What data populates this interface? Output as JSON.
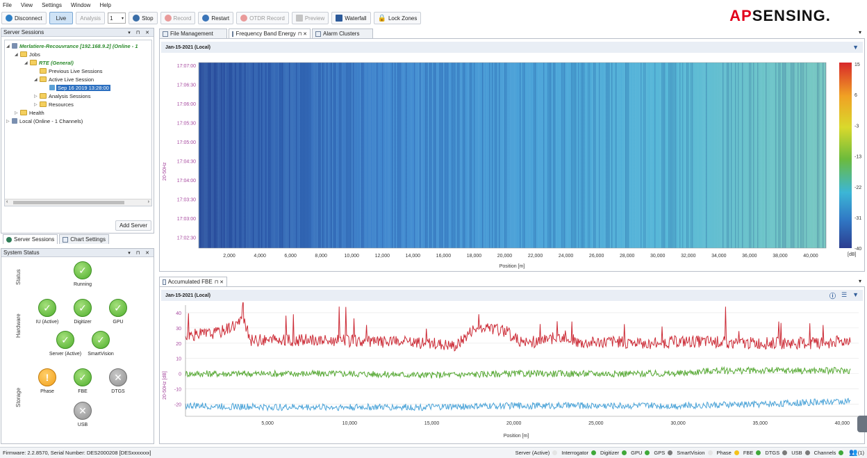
{
  "menu": [
    "File",
    "View",
    "Settings",
    "Window",
    "Help"
  ],
  "toolbar": {
    "disconnect": "Disconnect",
    "live": "Live",
    "analysis": "Analysis",
    "spin_value": "1",
    "stop": "Stop",
    "record": "Record",
    "restart": "Restart",
    "otdr_record": "OTDR Record",
    "preview": "Preview",
    "waterfall": "Waterfall",
    "lock_zones": "Lock Zones"
  },
  "logo": {
    "prefix": "AP",
    "suffix": "SENSING."
  },
  "server_sessions": {
    "title": "Server Sessions",
    "tree": {
      "server": "Merlatiere-Recouvrance [192.168.9.2] (Online - 1",
      "jobs": "Jobs",
      "rte": "RTE (General)",
      "previous": "Previous Live Sessions",
      "active": "Active Live Session",
      "session": "Sep 16 2019 13:28:00",
      "analysis": "Analysis Sessions",
      "resources": "Resources",
      "health": "Health",
      "local": "Local (Online - 1 Channels)"
    },
    "add_server": "Add Server",
    "tab_server_sessions": "Server Sessions",
    "tab_chart_settings": "Chart Settings"
  },
  "system_status": {
    "title": "System Status",
    "group_status": "Status",
    "group_hardware": "Hardware",
    "group_storage": "Storage",
    "running": "Running",
    "iu": "IU (Active)",
    "digitizer": "Digitizer",
    "gpu": "GPU",
    "server": "Server (Active)",
    "smartvision": "SmartVision",
    "phase": "Phase",
    "fbe": "FBE",
    "dtgs": "DTGS",
    "usb": "USB"
  },
  "tabs": {
    "file_management": "File Management",
    "frequency_band_energy": "Frequency Band Energy",
    "alarm_clusters": "Alarm Clusters",
    "accumulated_fbe": "Accumulated FBE"
  },
  "waterfall": {
    "date": "Jan-15-2021 (Local)",
    "ylabel": "20-50Hz",
    "xlabel": "Position [m]",
    "y_ticks": [
      "17:07:00",
      "17:06:30",
      "17:06:00",
      "17:05:30",
      "17:05:00",
      "17:04:30",
      "17:04:00",
      "17:03:30",
      "17:03:00",
      "17:02:30"
    ],
    "x_ticks": [
      "2,000",
      "4,000",
      "6,000",
      "8,000",
      "10,000",
      "12,000",
      "14,000",
      "16,000",
      "18,000",
      "20,000",
      "22,000",
      "24,000",
      "26,000",
      "28,000",
      "30,000",
      "32,000",
      "34,000",
      "36,000",
      "38,000",
      "40,000"
    ],
    "colorbar_ticks": [
      "15",
      "6",
      "-3",
      "-13",
      "-22",
      "-31",
      "-40"
    ],
    "colorbar_unit": "[dB]"
  },
  "chart_data": {
    "type": "line",
    "title": "Jan-15-2021 (Local)",
    "xlabel": "Position [m]",
    "ylabel": "20-50Hz [dB]",
    "x_ticks": [
      "5,000",
      "10,000",
      "15,000",
      "20,000",
      "25,000",
      "30,000",
      "35,000",
      "40,000"
    ],
    "y_ticks": [
      "40",
      "30",
      "20",
      "10",
      "0",
      "-10",
      "-20"
    ],
    "xlim": [
      0,
      41000
    ],
    "ylim": [
      -28,
      45
    ],
    "series": [
      {
        "color": "#cc2b36",
        "x": [
          0,
          2000,
          3500,
          4000,
          8000,
          12000,
          15000,
          16500,
          17500,
          18500,
          19500,
          20500,
          22000,
          23000,
          24000,
          26000,
          28000,
          30000,
          32000,
          34000,
          36000,
          38000,
          40000,
          40500
        ],
        "y": [
          25,
          27,
          35,
          22,
          22,
          21,
          20,
          18,
          29,
          30,
          28,
          20,
          22,
          25,
          20,
          21,
          20,
          21,
          21,
          20,
          20,
          20,
          21,
          23
        ]
      },
      {
        "color": "#55a832",
        "x": [
          0,
          5000,
          10000,
          15000,
          20000,
          25000,
          30000,
          32000,
          35000,
          38000,
          40500
        ],
        "y": [
          0,
          0,
          0,
          -1,
          0,
          0,
          0,
          2,
          2,
          2,
          2
        ]
      },
      {
        "color": "#4aa3d8",
        "x": [
          0,
          5000,
          10000,
          15000,
          20000,
          25000,
          30000,
          35000,
          40500
        ],
        "y": [
          -21,
          -22,
          -22,
          -22,
          -21,
          -21,
          -21,
          -20,
          -18
        ]
      }
    ]
  },
  "statusbar": {
    "firmware": "Firmware: 2.2.8570, Serial Number: DES2000208 [DESxxxxxxx]",
    "items": [
      {
        "label": "Server (Active)",
        "color": "#e4e4e4"
      },
      {
        "label": "Interrogator",
        "color": "#3fa83a"
      },
      {
        "label": "Digitizer",
        "color": "#3fa83a"
      },
      {
        "label": "GPU",
        "color": "#3fa83a"
      },
      {
        "label": "GPS",
        "color": "#7a7a7a"
      },
      {
        "label": "SmartVision",
        "color": "#e4e4e4"
      },
      {
        "label": "Phase",
        "color": "#f4c21b"
      },
      {
        "label": "FBE",
        "color": "#3fa83a"
      },
      {
        "label": "DTGS",
        "color": "#7a7a7a"
      },
      {
        "label": "USB",
        "color": "#7a7a7a"
      },
      {
        "label": "Channels",
        "color": "#3fa83a"
      }
    ],
    "count": "(1)"
  }
}
